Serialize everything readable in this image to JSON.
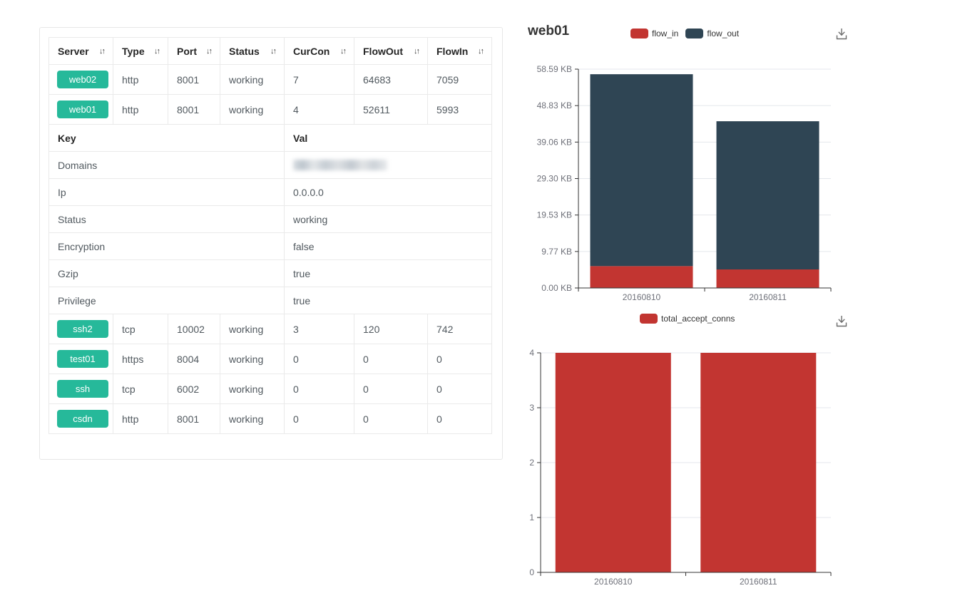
{
  "colors": {
    "badge_green": "#26b99a",
    "series_red": "#c23531",
    "series_dark": "#2f4554",
    "axis_line": "#333333",
    "axis_label": "#6e7079",
    "grid_line": "#e4e7ec",
    "header_text": "#262626",
    "cell_text": "#51595f"
  },
  "table": {
    "sort_icon": "↓↑",
    "columns": [
      "Server",
      "Type",
      "Port",
      "Status",
      "CurCon",
      "FlowOut",
      "FlowIn"
    ],
    "rows_top": [
      {
        "server": "web02",
        "type": "http",
        "port": "8001",
        "status": "working",
        "curcon": "7",
        "flowout": "64683",
        "flowin": "7059"
      },
      {
        "server": "web01",
        "type": "http",
        "port": "8001",
        "status": "working",
        "curcon": "4",
        "flowout": "52611",
        "flowin": "5993"
      }
    ],
    "keyval": {
      "key_header": "Key",
      "val_header": "Val",
      "rows": [
        {
          "key": "Domains",
          "val": "",
          "redacted": true
        },
        {
          "key": "Ip",
          "val": "0.0.0.0"
        },
        {
          "key": "Status",
          "val": "working"
        },
        {
          "key": "Encryption",
          "val": "false"
        },
        {
          "key": "Gzip",
          "val": "true"
        },
        {
          "key": "Privilege",
          "val": "true"
        }
      ]
    },
    "rows_bottom": [
      {
        "server": "ssh2",
        "type": "tcp",
        "port": "10002",
        "status": "working",
        "curcon": "3",
        "flowout": "120",
        "flowin": "742"
      },
      {
        "server": "test01",
        "type": "https",
        "port": "8004",
        "status": "working",
        "curcon": "0",
        "flowout": "0",
        "flowin": "0"
      },
      {
        "server": "ssh",
        "type": "tcp",
        "port": "6002",
        "status": "working",
        "curcon": "0",
        "flowout": "0",
        "flowin": "0"
      },
      {
        "server": "csdn",
        "type": "http",
        "port": "8001",
        "status": "working",
        "curcon": "0",
        "flowout": "0",
        "flowin": "0"
      }
    ]
  },
  "chart_data": [
    {
      "type": "bar",
      "stacked": true,
      "title": "web01",
      "categories": [
        "20160810",
        "20160811"
      ],
      "series": [
        {
          "name": "flow_in",
          "color": "#c23531",
          "values_kb": [
            5.85,
            4.96
          ]
        },
        {
          "name": "flow_out",
          "color": "#2f4554",
          "values_kb": [
            51.38,
            39.68
          ]
        }
      ],
      "y_tick_labels": [
        "0.00 KB",
        "9.77 KB",
        "19.53 KB",
        "29.30 KB",
        "39.06 KB",
        "48.83 KB",
        "58.59 KB"
      ],
      "ylim_kb": [
        0,
        58.59
      ],
      "xlabel": "",
      "ylabel": "",
      "grid": "horizontal",
      "legend_position": "top-center",
      "toolbox": [
        "save-as-image"
      ]
    },
    {
      "type": "bar",
      "stacked": false,
      "title": "",
      "categories": [
        "20160810",
        "20160811"
      ],
      "series": [
        {
          "name": "total_accept_conns",
          "color": "#c23531",
          "values": [
            4,
            4
          ]
        }
      ],
      "y_tick_labels": [
        "0",
        "1",
        "2",
        "3",
        "4"
      ],
      "ylim": [
        0,
        4
      ],
      "xlabel": "",
      "ylabel": "",
      "grid": "horizontal",
      "legend_position": "top-center",
      "toolbox": [
        "save-as-image"
      ]
    }
  ]
}
